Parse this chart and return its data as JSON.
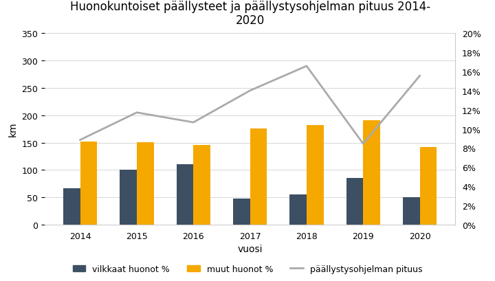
{
  "title": "Huonokuntoiset päällysteet ja päällystysohjelman pituus 2014-\n2020",
  "years": [
    2014,
    2015,
    2016,
    2017,
    2018,
    2019,
    2020
  ],
  "vilkkaat": [
    67,
    101,
    110,
    48,
    55,
    85,
    50
  ],
  "muut": [
    152,
    151,
    146,
    176,
    182,
    191,
    142
  ],
  "pituus_km": [
    155,
    205,
    187,
    245,
    290,
    148,
    272
  ],
  "bar_color_vilkkaat": "#3d4f63",
  "bar_color_muut": "#f5a800",
  "line_color": "#aaaaaa",
  "ylabel_left": "km",
  "xlabel": "vuosi",
  "ylim_left": [
    0,
    350
  ],
  "yticks_left": [
    0,
    50,
    100,
    150,
    200,
    250,
    300,
    350
  ],
  "right_ticks_km": [
    0,
    35,
    70,
    105,
    140,
    175,
    210,
    245,
    280,
    315,
    350
  ],
  "ytick_right_labels": [
    "0%",
    "2%",
    "4%",
    "6%",
    "8%",
    "10%",
    "12%",
    "14%",
    "16%",
    "18%",
    "20%"
  ],
  "legend_vilkkaat": "vilkkaat huonot %",
  "legend_muut": "muut huonot %",
  "legend_pituus": "päällystysohjelman pituus",
  "title_fontsize": 12,
  "axis_fontsize": 10,
  "tick_fontsize": 9,
  "legend_fontsize": 9,
  "bar_width": 0.3
}
